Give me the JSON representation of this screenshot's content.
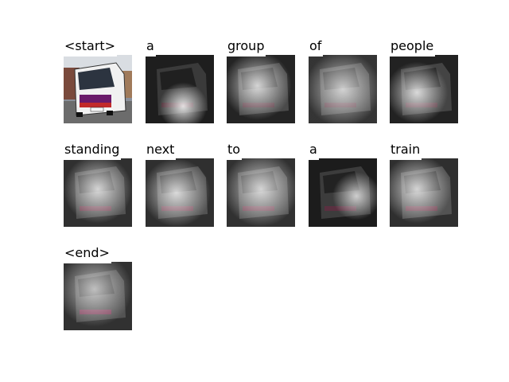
{
  "words": [
    "<start>",
    "a",
    "group",
    "of",
    "people",
    "standing",
    "next",
    "to",
    "a",
    "train",
    "<end>"
  ]
}
